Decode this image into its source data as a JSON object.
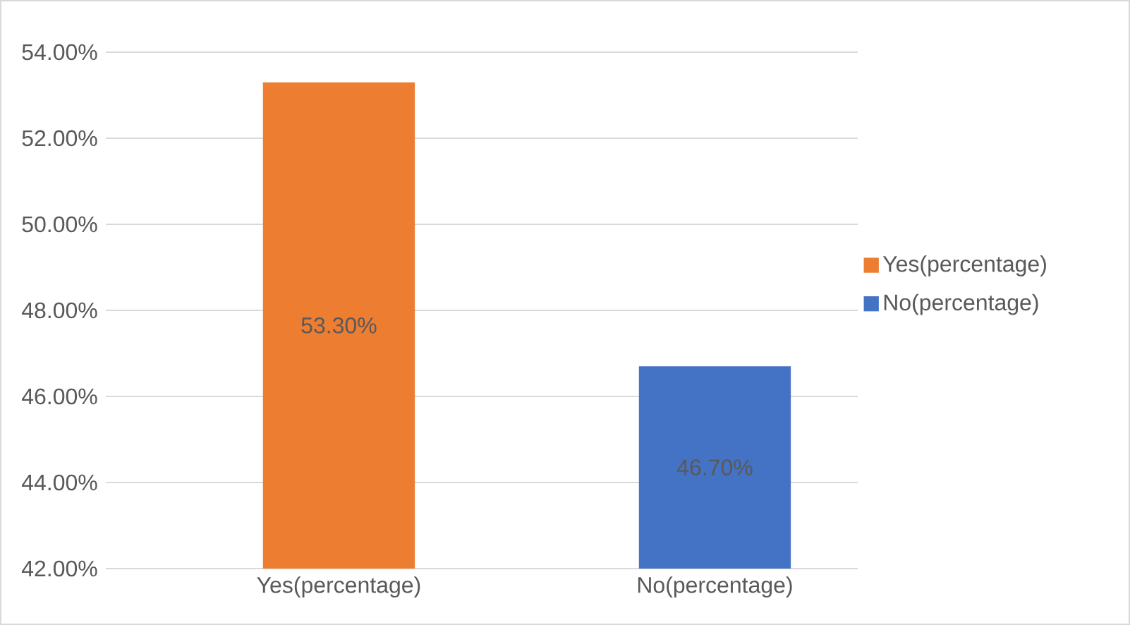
{
  "chart_data": {
    "type": "bar",
    "categories": [
      "Yes(percentage)",
      "No(percentage)"
    ],
    "series": [
      {
        "name": "Yes(percentage)",
        "color": "#ed7d31",
        "values": [
          53.3,
          null
        ],
        "value_labels": [
          "53.30%",
          null
        ]
      },
      {
        "name": "No(percentage)",
        "color": "#4472c4",
        "values": [
          null,
          46.7
        ],
        "value_labels": [
          null,
          "46.70%"
        ]
      }
    ],
    "stacked": true,
    "ylim": [
      42,
      54
    ],
    "yticks": [
      {
        "value": 42,
        "label": "42.00%"
      },
      {
        "value": 44,
        "label": "44.00%"
      },
      {
        "value": 46,
        "label": "46.00%"
      },
      {
        "value": 48,
        "label": "48.00%"
      },
      {
        "value": 50,
        "label": "50.00%"
      },
      {
        "value": 52,
        "label": "52.00%"
      },
      {
        "value": 54,
        "label": "54.00%"
      }
    ],
    "grid": "y",
    "legend": "right"
  }
}
